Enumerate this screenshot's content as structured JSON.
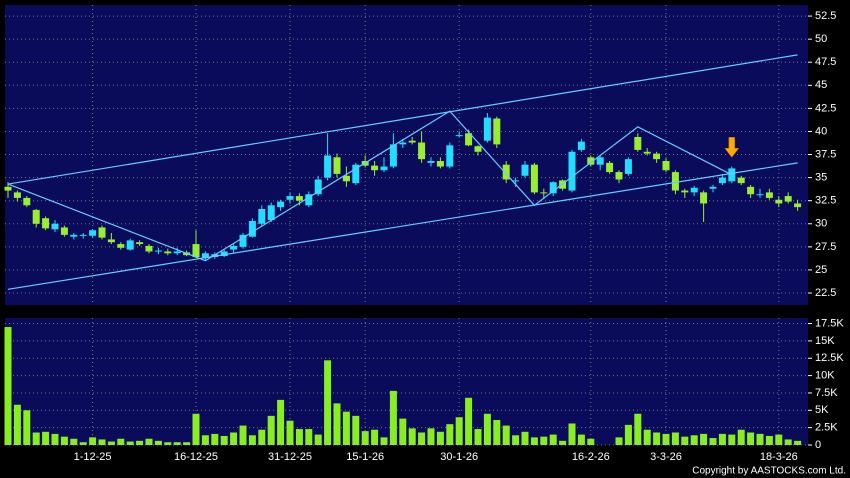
{
  "chart_data": {
    "type": "candlestick",
    "categories": [
      null,
      null,
      null,
      null,
      null,
      null,
      null,
      null,
      null,
      "1-12-25",
      null,
      null,
      null,
      null,
      null,
      null,
      null,
      null,
      null,
      null,
      "16-12-25",
      null,
      null,
      null,
      null,
      null,
      null,
      null,
      null,
      null,
      "31-12-25",
      null,
      null,
      null,
      null,
      null,
      null,
      null,
      "15-1-26",
      null,
      null,
      null,
      null,
      null,
      null,
      null,
      null,
      null,
      "30-1-26",
      null,
      null,
      null,
      null,
      null,
      null,
      null,
      null,
      null,
      null,
      null,
      null,
      null,
      "16-2-26",
      null,
      null,
      null,
      null,
      null,
      null,
      null,
      "3-3-26",
      null,
      null,
      null,
      null,
      null,
      null,
      null,
      null,
      null,
      null,
      null,
      "18-3-26",
      null,
      null
    ],
    "open": [
      34,
      33.4,
      32.8,
      31.5,
      30.6,
      29.4,
      29.6,
      28.6,
      28.7,
      28.7,
      29.6,
      28.3,
      27.8,
      27.2,
      28,
      27.6,
      27,
      27,
      26.8,
      26.9,
      27.8,
      26.3,
      26.4,
      26.5,
      27.2,
      27.5,
      28.6,
      30,
      30.4,
      31.8,
      32.6,
      33,
      32,
      33.2,
      35,
      37.2,
      35.2,
      34.4,
      36.8,
      36.3,
      35.8,
      36.2,
      38.6,
      39,
      38.8,
      36.6,
      36.8,
      36.2,
      39.6,
      39.8,
      38.4,
      39,
      41.4,
      36.4,
      34.6,
      35.2,
      36.4,
      33.4,
      33.3,
      34.7,
      33.6,
      38,
      37.2,
      36.4,
      36.6,
      35.6,
      35.4,
      39.4,
      37.8,
      37.6,
      36.8,
      35.6,
      33.6,
      33.4,
      33.4,
      33.8,
      34.4,
      34.6,
      35,
      34,
      33.2,
      33.4,
      32.6,
      33,
      32.2
    ],
    "high": [
      34.5,
      33.6,
      33,
      31.6,
      30.8,
      30.4,
      29.8,
      29,
      29,
      29.4,
      29.8,
      29,
      28,
      28.4,
      28.2,
      27.8,
      27.4,
      27.3,
      27.4,
      27.1,
      29.3,
      27,
      26.9,
      27.2,
      27.8,
      29,
      30.6,
      32,
      32.3,
      32.6,
      33.4,
      33.3,
      33.5,
      35.2,
      39.8,
      37.6,
      36.2,
      36.6,
      37.4,
      36.8,
      37.2,
      39.8,
      39.2,
      39.4,
      40,
      37.2,
      37.2,
      38.8,
      40,
      40.2,
      38.5,
      42,
      41.6,
      36.8,
      35,
      36.8,
      36.6,
      33.8,
      34.6,
      34.8,
      38,
      39.2,
      37.4,
      37.4,
      36.8,
      35.8,
      37.2,
      39.8,
      38.2,
      37.8,
      37.1,
      35.8,
      33.8,
      34.1,
      33.6,
      34.2,
      35.4,
      36.2,
      35.2,
      34.2,
      33.8,
      33.8,
      33,
      33.4,
      32.6
    ],
    "low": [
      32.8,
      32.4,
      31.8,
      29.6,
      29.3,
      29.1,
      28.6,
      28.3,
      28.4,
      28.5,
      28.3,
      27.8,
      27.2,
      27.1,
      27.6,
      26.8,
      26.7,
      26.6,
      26.6,
      26.5,
      26.3,
      26,
      26.2,
      26.4,
      26.8,
      27.3,
      28.5,
      29.8,
      30.2,
      31.4,
      32.2,
      32,
      31.8,
      33,
      34.7,
      35,
      34,
      34.2,
      36.1,
      35.2,
      35.6,
      36,
      38.2,
      38.6,
      36.6,
      36.2,
      36,
      36,
      39.4,
      38.4,
      37.4,
      38.8,
      38.2,
      34.4,
      34,
      35,
      33.2,
      32.8,
      33,
      33.6,
      33.4,
      37.8,
      36.2,
      35.8,
      35.4,
      34.4,
      35.2,
      37.8,
      37.4,
      36.6,
      35.6,
      33.2,
      32.8,
      33,
      30.2,
      33.4,
      34.2,
      34.4,
      34.2,
      32.8,
      32.8,
      32.6,
      31.8,
      32.2,
      31.4
    ],
    "close": [
      33.6,
      32.8,
      32,
      30,
      29.5,
      30,
      28.8,
      28.8,
      28.8,
      29.3,
      28.5,
      28,
      27.4,
      28.2,
      27.8,
      27,
      27.1,
      26.8,
      27,
      26.6,
      26.4,
      26.8,
      26.7,
      27,
      27.6,
      28.8,
      30.3,
      31.6,
      32,
      32.4,
      33,
      32.5,
      33.2,
      34.8,
      37.4,
      35.4,
      34.6,
      36.4,
      36.3,
      35.8,
      36.2,
      38.6,
      38.8,
      38.8,
      37,
      36.8,
      36.2,
      38.5,
      39.6,
      38.5,
      37.8,
      41.5,
      38.6,
      34.8,
      34.7,
      36.4,
      33.4,
      33.3,
      34.5,
      33.8,
      37.8,
      38.9,
      36.4,
      37.2,
      35.6,
      34.8,
      37,
      38,
      37.6,
      37,
      35.8,
      33.6,
      33.4,
      33.9,
      32.2,
      34,
      35,
      36,
      34.4,
      33.2,
      33.2,
      32.8,
      32.2,
      32.4,
      31.8
    ],
    "volume": [
      17000,
      5800,
      5000,
      1800,
      1900,
      1600,
      1200,
      900,
      400,
      1100,
      800,
      500,
      900,
      500,
      600,
      900,
      600,
      400,
      400,
      400,
      4500,
      1400,
      1600,
      1300,
      1800,
      2800,
      1400,
      2200,
      4200,
      6500,
      3500,
      2300,
      2300,
      1500,
      12200,
      6000,
      4800,
      4200,
      2000,
      2200,
      1100,
      7800,
      3800,
      2400,
      1800,
      2400,
      1900,
      3000,
      4000,
      6800,
      2300,
      4500,
      3600,
      2800,
      1400,
      1900,
      1100,
      1200,
      1500,
      600,
      3100,
      1500,
      900,
      0,
      0,
      1100,
      2900,
      4500,
      2200,
      1800,
      1600,
      1800,
      1200,
      1400,
      1600,
      1000,
      1600,
      1500,
      2200,
      1800,
      1600,
      1300,
      1500,
      800,
      600
    ],
    "up_color": "#22ddff",
    "down_color": "#99ee33",
    "volume_color": "#88ee22",
    "ylim": [
      21.2,
      53.7
    ],
    "yticks": [
      22.5,
      25,
      27.5,
      30,
      32.5,
      35,
      37.5,
      40,
      42.5,
      45,
      47.5,
      50,
      52.5
    ],
    "volume_ylim": [
      0,
      18300
    ],
    "volume_ticks": [
      0,
      {
        "value": 2500,
        "label": "2.5K"
      },
      {
        "value": 5000,
        "label": "5K"
      },
      {
        "value": 7500,
        "label": "7.5K"
      },
      {
        "value": 10000,
        "label": "10K"
      },
      {
        "value": 12500,
        "label": "12.5K"
      },
      {
        "value": 15000,
        "label": "15K"
      },
      {
        "value": 17500,
        "label": "17.5K"
      }
    ],
    "grid": true,
    "trend_lines": [
      {
        "color": "#66ccff",
        "points": [
          [
            0,
            34.3
          ],
          [
            84,
            48.3
          ]
        ]
      },
      {
        "color": "#66ccff",
        "points": [
          [
            0,
            22.9
          ],
          [
            84,
            36.6
          ]
        ]
      },
      {
        "color": "#66ccff",
        "points": [
          [
            0,
            34.3
          ],
          [
            21,
            26.0
          ],
          [
            47,
            42.2
          ],
          [
            56,
            32.0
          ],
          [
            67,
            40.5
          ],
          [
            77,
            35.3
          ]
        ]
      }
    ],
    "arrow": {
      "index": 77,
      "value": 37.2,
      "color": "#ffaa00"
    },
    "copyright": "Copyright by AASTOCKS.com Ltd."
  }
}
